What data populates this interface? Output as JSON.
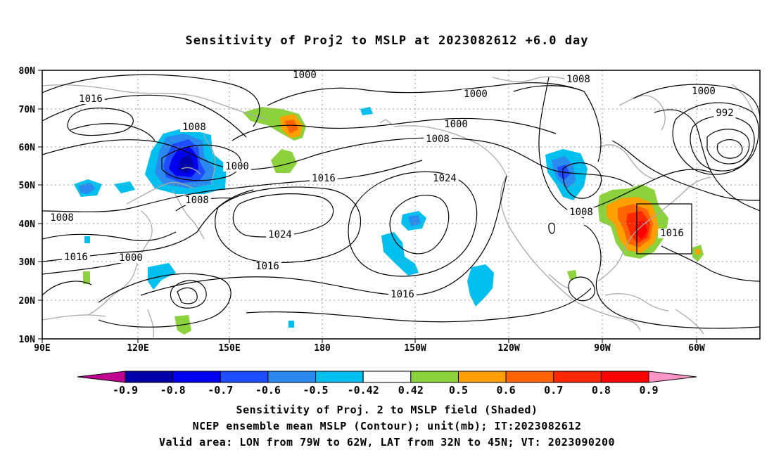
{
  "title": "Sensitivity of Proj2 to MSLP at 2023082612 +6.0 day",
  "lat_labels": [
    "80N",
    "70N",
    "60N",
    "50N",
    "40N",
    "30N",
    "20N",
    "10N"
  ],
  "lon_labels": [
    "90E",
    "120E",
    "150E",
    "180",
    "150W",
    "120W",
    "90W",
    "60W"
  ],
  "contour_labels": [
    "1000",
    "1016",
    "1008",
    "1000",
    "1008",
    "1000",
    "1000",
    "992",
    "1008",
    "1000",
    "1016",
    "1024",
    "1008",
    "1024",
    "1008",
    "1016",
    "1016",
    "1008",
    "1016",
    "1000",
    "1016"
  ],
  "colorbar": {
    "labels": [
      "-0.9",
      "-0.8",
      "-0.7",
      "-0.6",
      "-0.5",
      "-0.42",
      "0.42",
      "0.5",
      "0.6",
      "0.7",
      "0.8",
      "0.9"
    ],
    "colors": [
      "#c00090",
      "#0000a8",
      "#0000f0",
      "#1e4cff",
      "#2a8af0",
      "#00c0f0",
      "#ffffff",
      "#8cd23c",
      "#ffa000",
      "#ff6400",
      "#ff2800",
      "#ff0000",
      "#ff96c8"
    ]
  },
  "valid_area": {
    "lon": [
      "79W",
      "62W"
    ],
    "lat": [
      "32N",
      "45N"
    ]
  },
  "captions": [
    "Sensitivity of Proj. 2 to MSLP field (Shaded)",
    "NCEP ensemble mean MSLP (Contour); unit(mb); IT:2023082612",
    "Valid area: LON from 79W to 62W, LAT from 32N to 45N; VT: 2023090200"
  ]
}
